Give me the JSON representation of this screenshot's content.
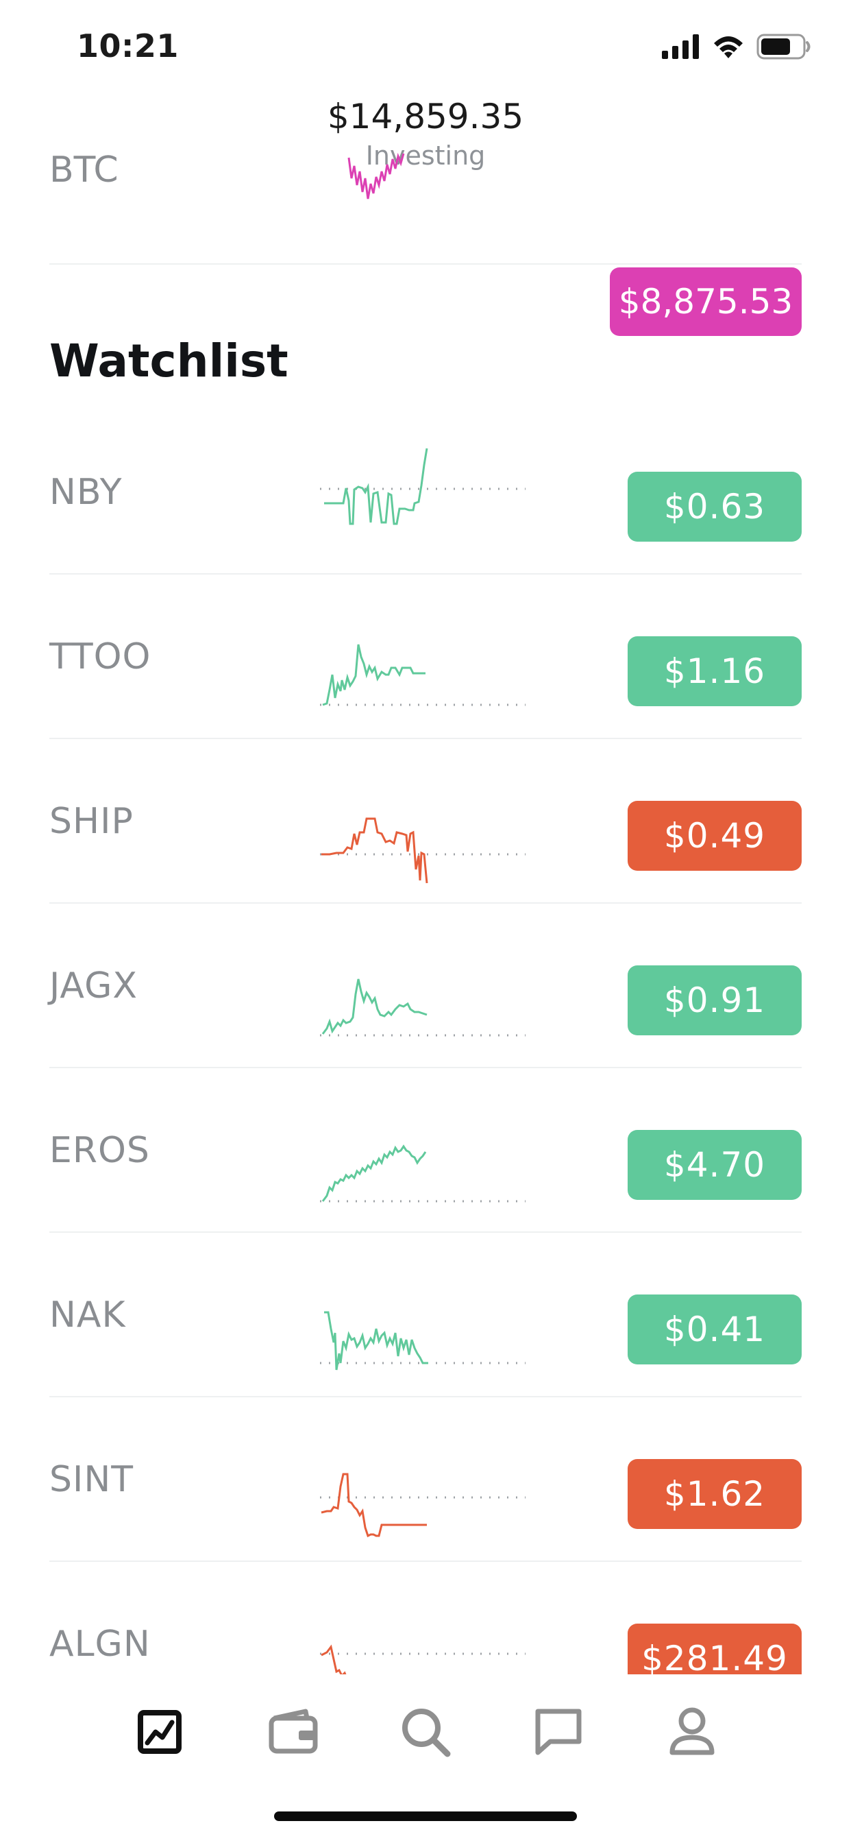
{
  "status_bar": {
    "time": "10:21"
  },
  "portfolio": {
    "value": "$14,859.35",
    "caption": "Investing"
  },
  "crypto": {
    "symbol": "BTC",
    "price": "$8,875.53",
    "color": "#dc40b3"
  },
  "watchlist": {
    "title": "Watchlist",
    "colors": {
      "up": "#60c99b",
      "down": "#e55e3b"
    },
    "items": [
      {
        "symbol": "NBY",
        "price": "$0.63",
        "trend": "up"
      },
      {
        "symbol": "TTOO",
        "price": "$1.16",
        "trend": "up"
      },
      {
        "symbol": "SHIP",
        "price": "$0.49",
        "trend": "down"
      },
      {
        "symbol": "JAGX",
        "price": "$0.91",
        "trend": "up"
      },
      {
        "symbol": "EROS",
        "price": "$4.70",
        "trend": "up"
      },
      {
        "symbol": "NAK",
        "price": "$0.41",
        "trend": "up"
      },
      {
        "symbol": "SINT",
        "price": "$1.62",
        "trend": "down"
      },
      {
        "symbol": "ALGN",
        "price": "$281.49",
        "trend": "down"
      }
    ]
  },
  "tab_bar": {
    "tabs": [
      {
        "icon": "chart-icon",
        "active": true
      },
      {
        "icon": "wallet-icon",
        "active": false
      },
      {
        "icon": "search-icon",
        "active": false
      },
      {
        "icon": "message-icon",
        "active": false
      },
      {
        "icon": "profile-icon",
        "active": false
      }
    ]
  }
}
